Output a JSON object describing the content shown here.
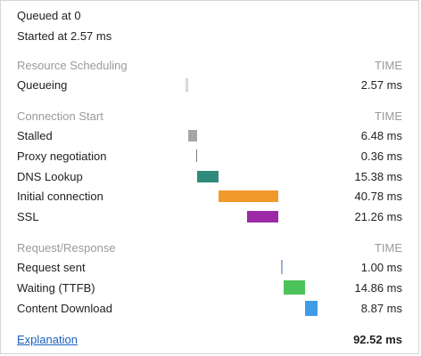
{
  "header": {
    "queued_at": "Queued at 0",
    "started_at": "Started at 2.57 ms"
  },
  "sections": {
    "resource_scheduling": {
      "title": "Resource Scheduling",
      "time_header": "TIME",
      "rows": [
        {
          "label": "Queueing",
          "value": "2.57 ms",
          "color": "#e4e4e4"
        }
      ]
    },
    "connection_start": {
      "title": "Connection Start",
      "time_header": "TIME",
      "rows": [
        {
          "label": "Stalled",
          "value": "6.48 ms",
          "color": "#a6a6a6"
        },
        {
          "label": "Proxy negotiation",
          "value": "0.36 ms",
          "color": "#7e7e7e"
        },
        {
          "label": "DNS Lookup",
          "value": "15.38 ms",
          "color": "#2e8b7b"
        },
        {
          "label": "Initial connection",
          "value": "40.78 ms",
          "color": "#f09a2c"
        },
        {
          "label": "SSL",
          "value": "21.26 ms",
          "color": "#9c2aa6"
        }
      ]
    },
    "request_response": {
      "title": "Request/Response",
      "time_header": "TIME",
      "rows": [
        {
          "label": "Request sent",
          "value": "1.00 ms",
          "color": "#9bb3cf"
        },
        {
          "label": "Waiting (TTFB)",
          "value": "14.86 ms",
          "color": "#4cc25a"
        },
        {
          "label": "Content Download",
          "value": "8.87 ms",
          "color": "#3f9be8"
        }
      ]
    }
  },
  "footer": {
    "explanation_link": "Explanation",
    "total": "92.52 ms"
  }
}
